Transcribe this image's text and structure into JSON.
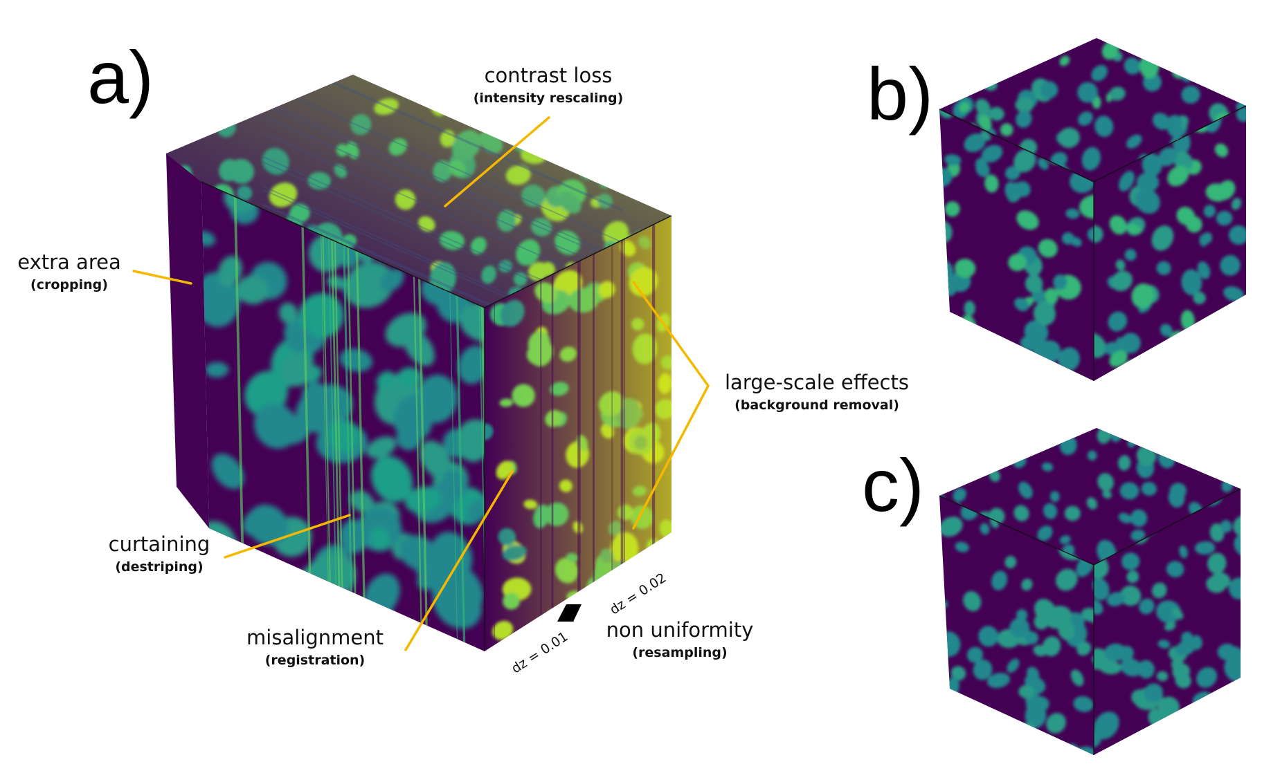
{
  "panels": {
    "a": "a)",
    "b": "b)",
    "c": "c)"
  },
  "annotations": {
    "contrast_loss": {
      "label": "contrast loss",
      "method": "(intensity rescaling)"
    },
    "extra_area": {
      "label": "extra area",
      "method": "(cropping)"
    },
    "large_scale": {
      "label": "large-scale effects",
      "method": "(background removal)"
    },
    "curtaining": {
      "label": "curtaining",
      "method": "(destriping)"
    },
    "misalignment": {
      "label": "misalignment",
      "method": "(registration)"
    },
    "non_uniformity": {
      "label": "non uniformity",
      "method": "(resampling)"
    }
  },
  "slice_spacing": {
    "left": "dz = 0.01",
    "right": "dz = 0.02"
  },
  "colors": {
    "background_phase": "#440154",
    "phase_teal": "#23888e",
    "phase_green": "#35b779",
    "phase_yellow": "#b5de2b",
    "leader_line": "#f5b800",
    "edge": "#111111"
  }
}
